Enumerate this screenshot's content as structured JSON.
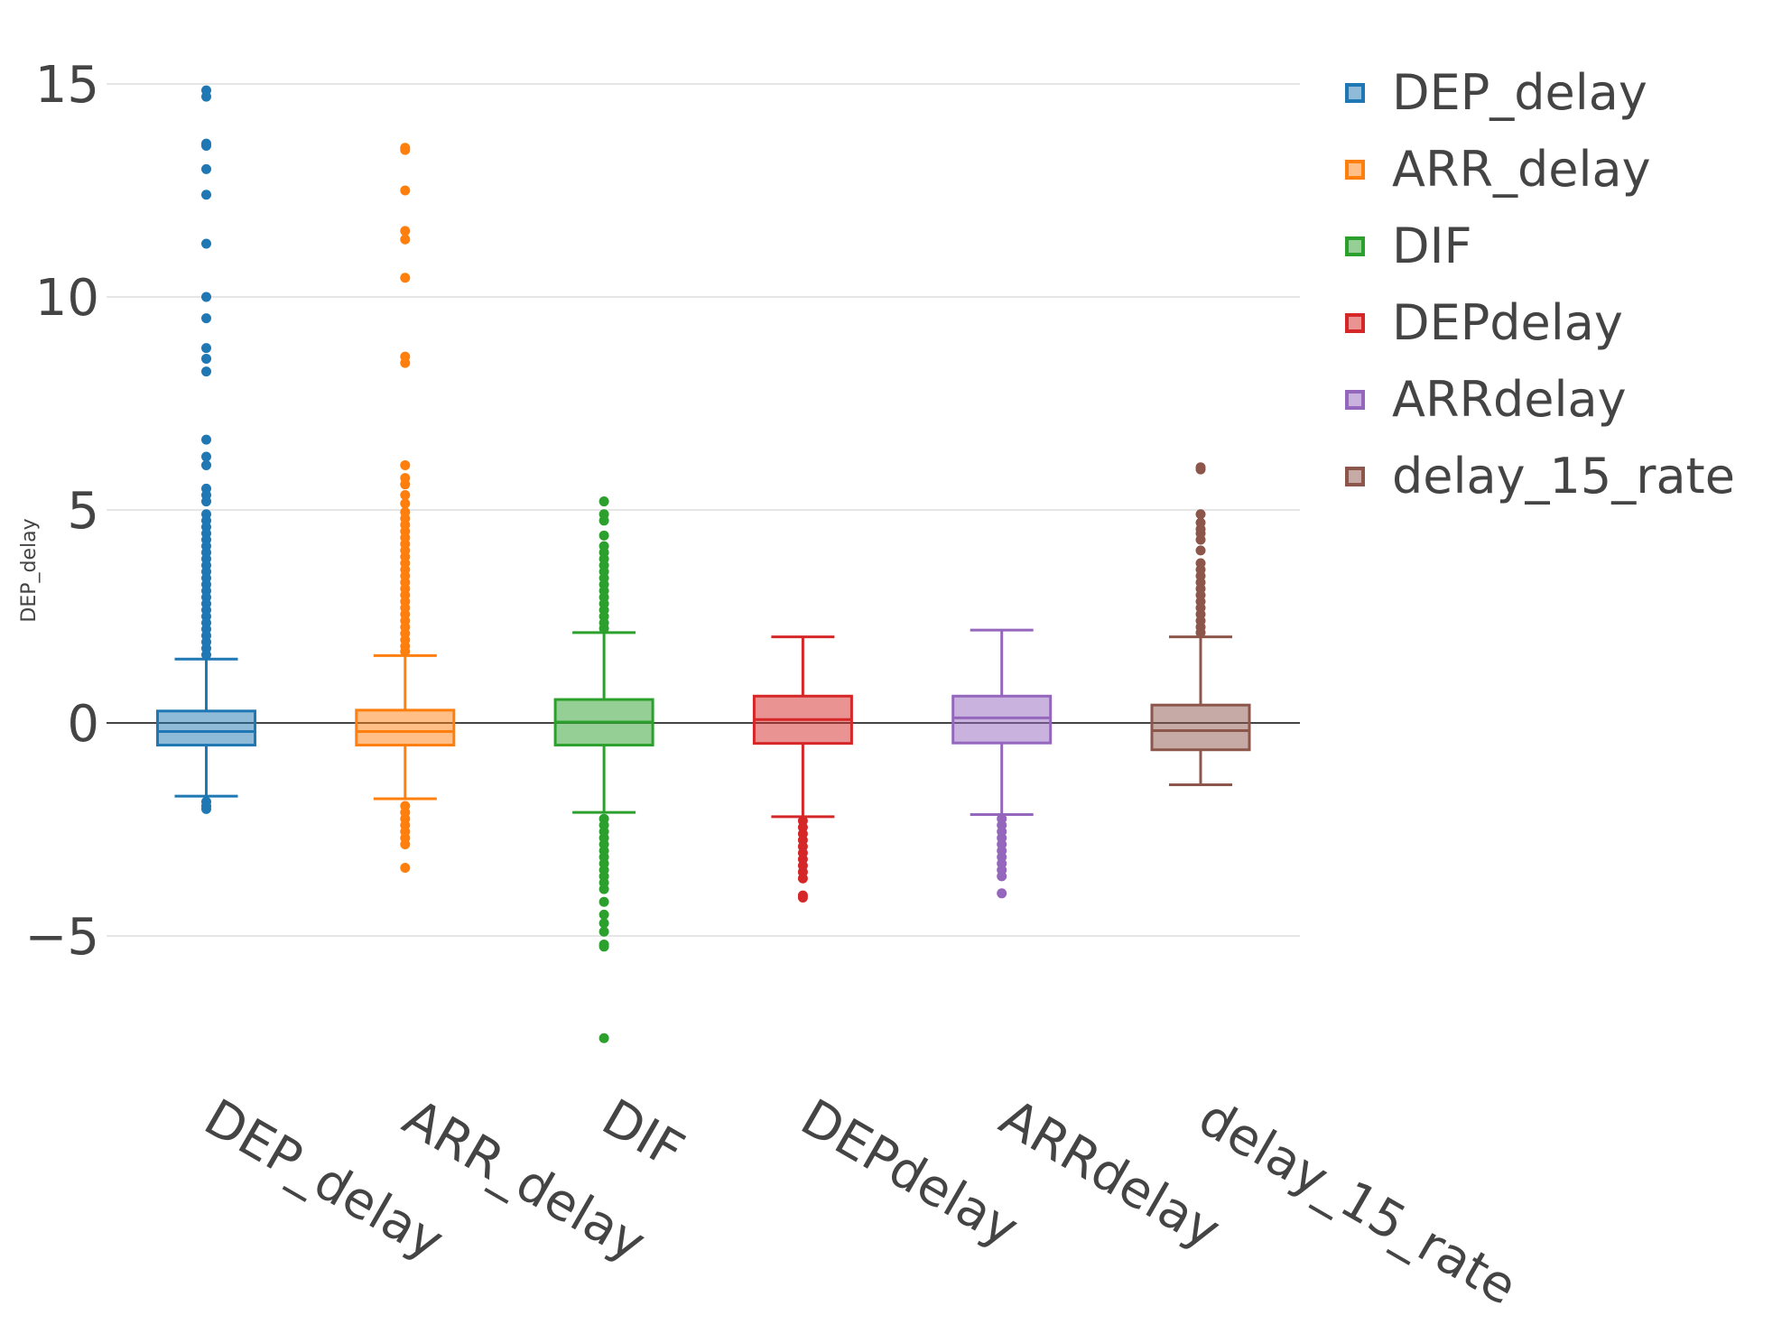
{
  "chart_data": {
    "type": "box",
    "ylabel": "DEP_delay",
    "ylim": [
      -8.2,
      15.8
    ],
    "yticks": [
      -5,
      0,
      5,
      10,
      15
    ],
    "ytick_labels": [
      "−5",
      "0",
      "5",
      "10",
      "15"
    ],
    "grid": true,
    "legend_position": "top-right",
    "series": [
      {
        "name": "DEP_delay",
        "color": "#1f77b4",
        "lower_fence": -1.72,
        "q1": -0.52,
        "median": -0.2,
        "q3": 0.28,
        "upper_fence": 1.5,
        "outliers": [
          14.85,
          14.7,
          13.6,
          13.55,
          13.0,
          12.4,
          11.25,
          10.0,
          9.5,
          8.8,
          8.55,
          8.25,
          6.65,
          6.25,
          6.05,
          5.5,
          5.35,
          5.2,
          4.9,
          4.75,
          4.6,
          4.45,
          4.3,
          4.15,
          4.0,
          3.85,
          3.7,
          3.55,
          3.4,
          3.25,
          3.1,
          2.95,
          2.8,
          2.65,
          2.5,
          2.35,
          2.2,
          2.05,
          1.9,
          1.75,
          1.6,
          -1.85,
          -1.95,
          -2.02
        ]
      },
      {
        "name": "ARR_delay",
        "color": "#ff7f0e",
        "lower_fence": -1.78,
        "q1": -0.52,
        "median": -0.2,
        "q3": 0.3,
        "upper_fence": 1.58,
        "outliers": [
          13.5,
          13.45,
          12.5,
          11.55,
          11.35,
          10.45,
          8.6,
          8.45,
          6.05,
          5.75,
          5.6,
          5.35,
          5.15,
          4.95,
          4.8,
          4.65,
          4.5,
          4.35,
          4.2,
          4.05,
          3.9,
          3.75,
          3.6,
          3.45,
          3.3,
          3.15,
          3.0,
          2.85,
          2.7,
          2.55,
          2.4,
          2.25,
          2.1,
          1.95,
          1.8,
          1.68,
          -1.95,
          -2.1,
          -2.25,
          -2.4,
          -2.55,
          -2.7,
          -2.85,
          -3.4
        ]
      },
      {
        "name": "DIF",
        "color": "#2ca02c",
        "lower_fence": -2.1,
        "q1": -0.52,
        "median": 0.02,
        "q3": 0.55,
        "upper_fence": 2.12,
        "outliers": [
          5.2,
          4.9,
          4.75,
          4.4,
          4.15,
          4.0,
          3.85,
          3.7,
          3.55,
          3.4,
          3.25,
          3.1,
          2.95,
          2.8,
          2.65,
          2.5,
          2.35,
          2.22,
          -2.25,
          -2.4,
          -2.55,
          -2.7,
          -2.85,
          -3.0,
          -3.15,
          -3.3,
          -3.45,
          -3.6,
          -3.75,
          -3.9,
          -4.2,
          -4.5,
          -4.7,
          -4.9,
          -5.2,
          -5.25,
          -7.4
        ]
      },
      {
        "name": "DEPdelay",
        "color": "#d62728",
        "lower_fence": -2.2,
        "q1": -0.48,
        "median": 0.08,
        "q3": 0.63,
        "upper_fence": 2.02,
        "outliers": [
          -2.3,
          -2.45,
          -2.6,
          -2.75,
          -2.9,
          -3.05,
          -3.2,
          -3.35,
          -3.5,
          -3.65,
          -4.05,
          -4.1
        ]
      },
      {
        "name": "ARRdelay",
        "color": "#9467bd",
        "lower_fence": -2.15,
        "q1": -0.47,
        "median": 0.12,
        "q3": 0.63,
        "upper_fence": 2.18,
        "outliers": [
          -2.25,
          -2.4,
          -2.55,
          -2.7,
          -2.85,
          -3.0,
          -3.15,
          -3.3,
          -3.45,
          -3.6,
          -4.0
        ]
      },
      {
        "name": "delay_15_rate",
        "color": "#8c564b",
        "lower_fence": -1.45,
        "q1": -0.63,
        "median": -0.18,
        "q3": 0.42,
        "upper_fence": 2.02,
        "outliers": [
          6.0,
          5.95,
          4.9,
          4.7,
          4.55,
          4.45,
          4.3,
          4.05,
          3.75,
          3.6,
          3.45,
          3.3,
          3.15,
          3.0,
          2.85,
          2.7,
          2.55,
          2.4,
          2.25,
          2.12
        ]
      }
    ]
  }
}
